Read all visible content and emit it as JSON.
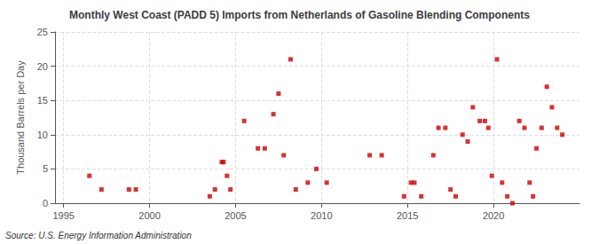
{
  "chart_data": {
    "type": "scatter",
    "title": "Monthly West Coast (PADD 5) Imports from Netherlands of Gasoline Blending Components",
    "ylabel": "Thousand Barrels per Day",
    "annotation": "Source: U.S. Energy Information Administration",
    "color": "#cc0000",
    "marker": "square",
    "grid": true,
    "xlim": [
      1994.5,
      2025
    ],
    "ylim": [
      0,
      25
    ],
    "xticks": [
      1995,
      2000,
      2005,
      2010,
      2015,
      2020
    ],
    "yticks": [
      0,
      5,
      10,
      15,
      20,
      25
    ],
    "x": [
      1996.5,
      1997.2,
      1998.8,
      1999.2,
      2003.5,
      2003.8,
      2004.2,
      2004.3,
      2004.5,
      2004.7,
      2005.5,
      2006.3,
      2006.7,
      2007.2,
      2007.5,
      2007.8,
      2008.2,
      2008.5,
      2009.2,
      2009.7,
      2010.3,
      2012.8,
      2013.5,
      2014.8,
      2015.2,
      2015.4,
      2015.8,
      2016.5,
      2016.8,
      2017.2,
      2017.5,
      2017.8,
      2018.2,
      2018.5,
      2018.8,
      2019.2,
      2019.5,
      2019.7,
      2019.9,
      2020.2,
      2020.5,
      2020.8,
      2021.1,
      2021.5,
      2021.8,
      2022.1,
      2022.3,
      2022.5,
      2022.8,
      2023.1,
      2023.4,
      2023.7,
      2024.0
    ],
    "values": [
      4,
      2,
      2,
      2,
      1,
      2,
      6,
      6,
      4,
      2,
      12,
      8,
      8,
      13,
      16,
      7,
      21,
      2,
      3,
      5,
      3,
      7,
      7,
      1,
      3,
      3,
      1,
      7,
      11,
      11,
      2,
      1,
      10,
      9,
      14,
      12,
      12,
      11,
      4,
      21,
      3,
      1,
      0,
      12,
      11,
      3,
      1,
      8,
      11,
      17,
      14,
      11,
      10
    ]
  }
}
